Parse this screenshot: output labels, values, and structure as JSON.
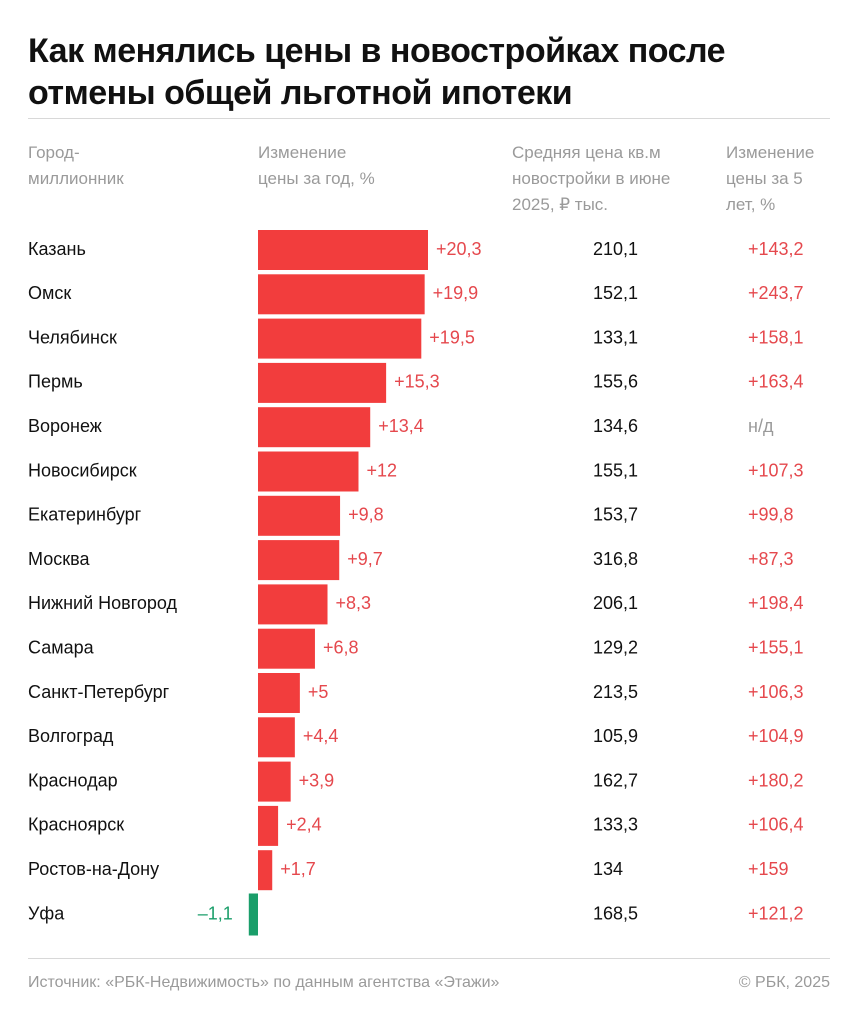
{
  "chart_data": {
    "type": "bar",
    "orientation": "horizontal",
    "title": "Как менялись цены в новостройках после отмены общей льготной ипотеки",
    "city_header": "Город-миллионник",
    "bar_header": "Изменение цены за год, %",
    "price_header": "Средняя цена кв.м новостройки в июне 2025, ₽ тыс.",
    "change5_header": "Изменение цены за 5 лет, %",
    "categories": [
      "Казань",
      "Омск",
      "Челябинск",
      "Пермь",
      "Воронеж",
      "Новосибирск",
      "Екатеринбург",
      "Москва",
      "Нижний Новгород",
      "Самара",
      "Санкт-Петербург",
      "Волгоград",
      "Краснодар",
      "Красноярск",
      "Ростов-на-Дону",
      "Уфа"
    ],
    "values": [
      20.3,
      19.9,
      19.5,
      15.3,
      13.4,
      12,
      9.8,
      9.7,
      8.3,
      6.8,
      5,
      4.4,
      3.9,
      2.4,
      1.7,
      -1.1
    ],
    "value_labels": [
      "+20,3",
      "+19,9",
      "+19,5",
      "+15,3",
      "+13,4",
      "+12",
      "+9,8",
      "+9,7",
      "+8,3",
      "+6,8",
      "+5",
      "+4,4",
      "+3,9",
      "+2,4",
      "+1,7",
      "–1,1"
    ],
    "prices": [
      "210,1",
      "152,1",
      "133,1",
      "155,6",
      "134,6",
      "155,1",
      "153,7",
      "316,8",
      "206,1",
      "129,2",
      "213,5",
      "105,9",
      "162,7",
      "133,3",
      "134",
      "168,5"
    ],
    "change5": [
      "+143,2",
      "+243,7",
      "+158,1",
      "+163,4",
      "н/д",
      "+107,3",
      "+99,8",
      "+87,3",
      "+198,4",
      "+155,1",
      "+106,3",
      "+104,9",
      "+180,2",
      "+106,4",
      "+159",
      "+121,2"
    ],
    "color": "#f23d3d",
    "negative_color": "#1a9e6a",
    "source": "Источник: «РБК-Недвижимость» по данным агентства «Этажи»",
    "copyright": "© РБК, 2025"
  }
}
